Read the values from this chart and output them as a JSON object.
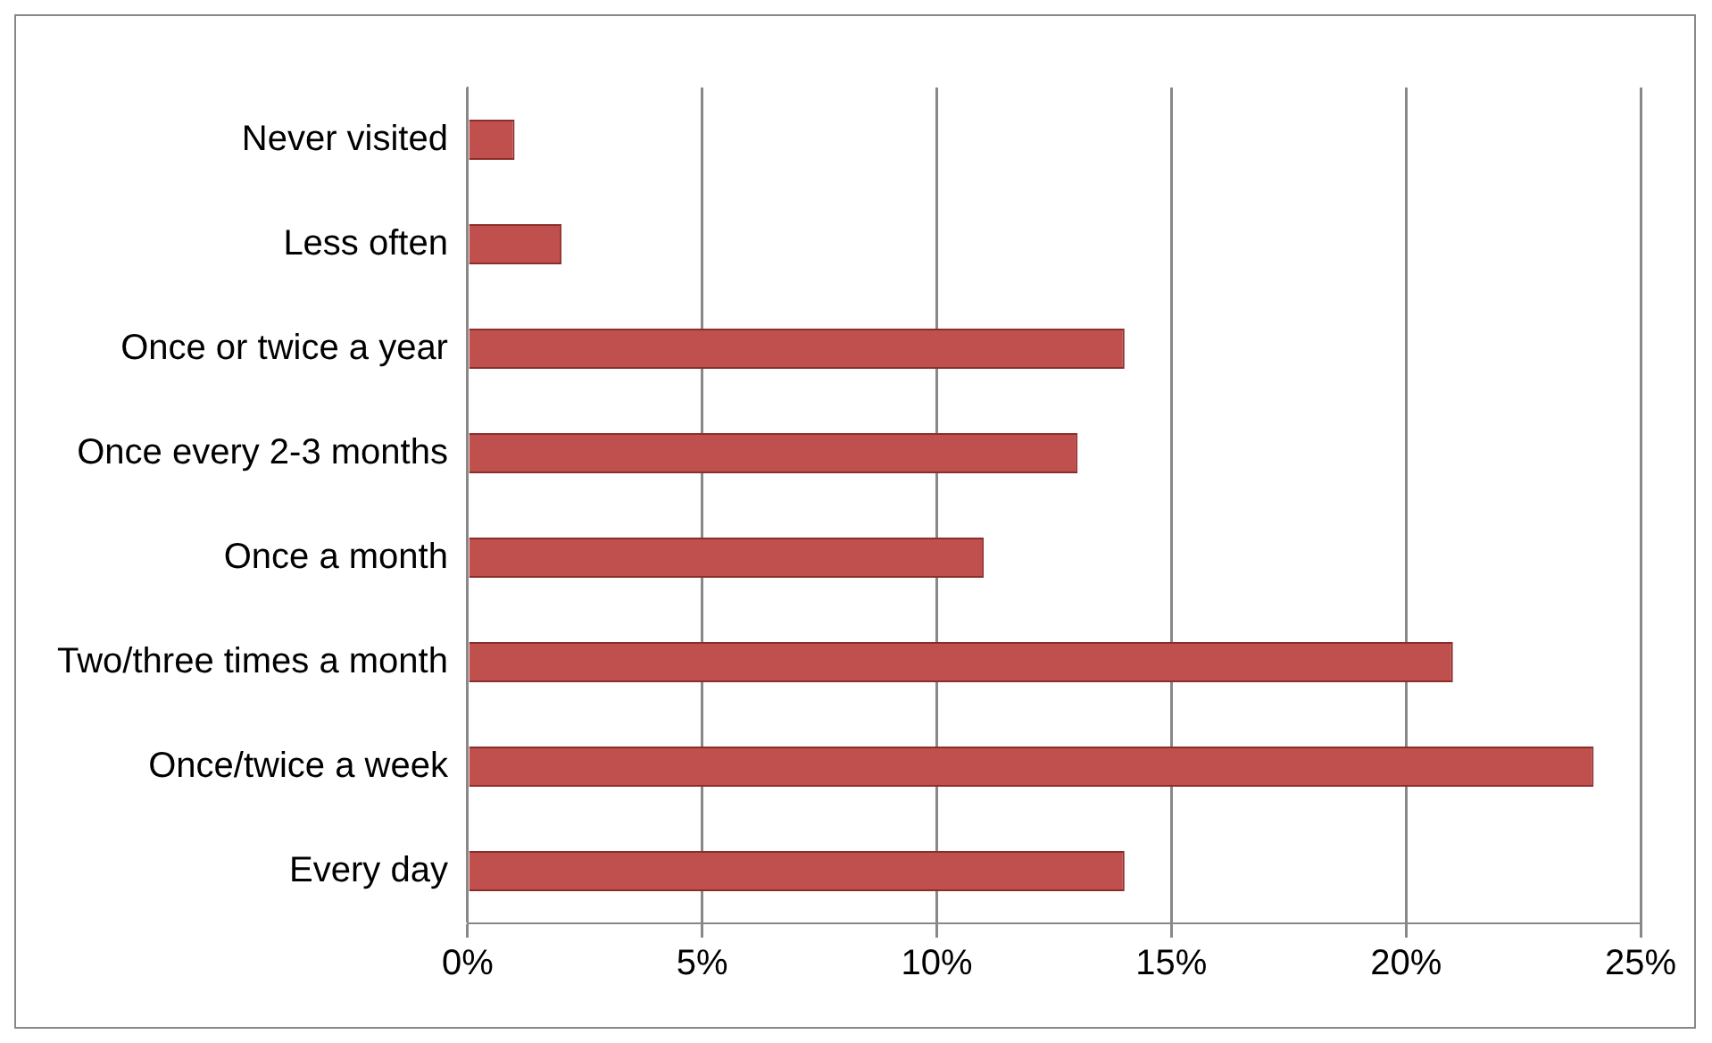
{
  "chart_data": {
    "type": "bar",
    "orientation": "horizontal",
    "categories": [
      "Never visited",
      "Less often",
      "Once or twice a year",
      "Once every 2-3 months",
      "Once a month",
      "Two/three times a month",
      "Once/twice a week",
      "Every day"
    ],
    "values": [
      1,
      2,
      14,
      13,
      11,
      21,
      24,
      14
    ],
    "color": "#c0504d",
    "xlim": [
      0,
      25
    ],
    "xticks": [
      {
        "value": 0,
        "label": "0%"
      },
      {
        "value": 5,
        "label": "5%"
      },
      {
        "value": 10,
        "label": "10%"
      },
      {
        "value": 15,
        "label": "15%"
      },
      {
        "value": 20,
        "label": "20%"
      },
      {
        "value": 25,
        "label": "25%"
      }
    ],
    "grid": "x",
    "legend": false
  }
}
